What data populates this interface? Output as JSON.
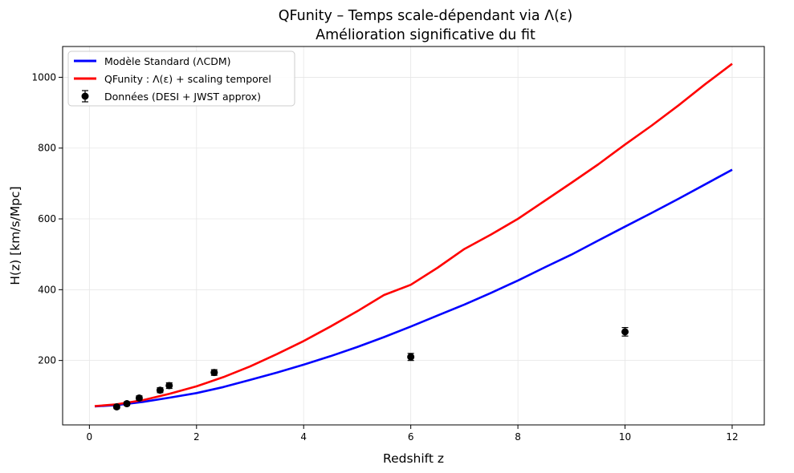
{
  "chart_data": {
    "type": "line",
    "title": [
      "QFunity – Temps scale-dépendant via Λ(ε)",
      "Amélioration significative du fit"
    ],
    "xlabel": "Redshift z",
    "ylabel": "H(z) [km/s/Mpc]",
    "xlim": [
      -0.5,
      12.6
    ],
    "ylim": [
      18,
      1087
    ],
    "xticks": [
      0,
      2,
      4,
      6,
      8,
      10,
      12
    ],
    "yticks": [
      200,
      400,
      600,
      800,
      1000
    ],
    "grid": true,
    "legend_position": "top-left",
    "series": [
      {
        "name": "Modèle Standard (ΛCDM)",
        "kind": "line",
        "color": "#0000ff",
        "x": [
          0.1,
          0.5,
          1,
          1.5,
          2,
          2.5,
          3,
          3.5,
          4,
          4.5,
          5,
          5.5,
          6,
          6.5,
          7,
          7.5,
          8,
          8.5,
          9,
          9.5,
          10,
          10.5,
          11,
          11.5,
          12
        ],
        "y": [
          70,
          74,
          83,
          95,
          108,
          125,
          145,
          166,
          188,
          212,
          238,
          266,
          296,
          327,
          358,
          391,
          426,
          463,
          499,
          539,
          578,
          617,
          657,
          698,
          739
        ]
      },
      {
        "name": "QFunity : Λ(ε) + scaling temporel",
        "kind": "line",
        "color": "#ff0000",
        "x": [
          0.1,
          0.5,
          1,
          1.5,
          2,
          2.5,
          3,
          3.5,
          4,
          4.5,
          5,
          5.5,
          6,
          6.5,
          7,
          7.5,
          8,
          8.5,
          9,
          9.5,
          10,
          10.5,
          11,
          11.5,
          12
        ],
        "y": [
          71,
          76,
          88,
          106,
          127,
          153,
          183,
          218,
          255,
          296,
          339,
          385,
          414,
          462,
          515,
          556,
          600,
          651,
          702,
          754,
          810,
          864,
          921,
          981,
          1038
        ]
      },
      {
        "name": "Données (DESI + JWST approx)",
        "kind": "errorbar",
        "color": "#000000",
        "x": [
          0.51,
          0.7,
          0.93,
          1.32,
          1.49,
          2.33,
          6.0,
          10.0
        ],
        "y": [
          69,
          78,
          94,
          116,
          129,
          166,
          210,
          281
        ],
        "err": [
          5,
          5,
          6,
          7,
          8,
          8,
          10,
          12
        ]
      }
    ]
  }
}
